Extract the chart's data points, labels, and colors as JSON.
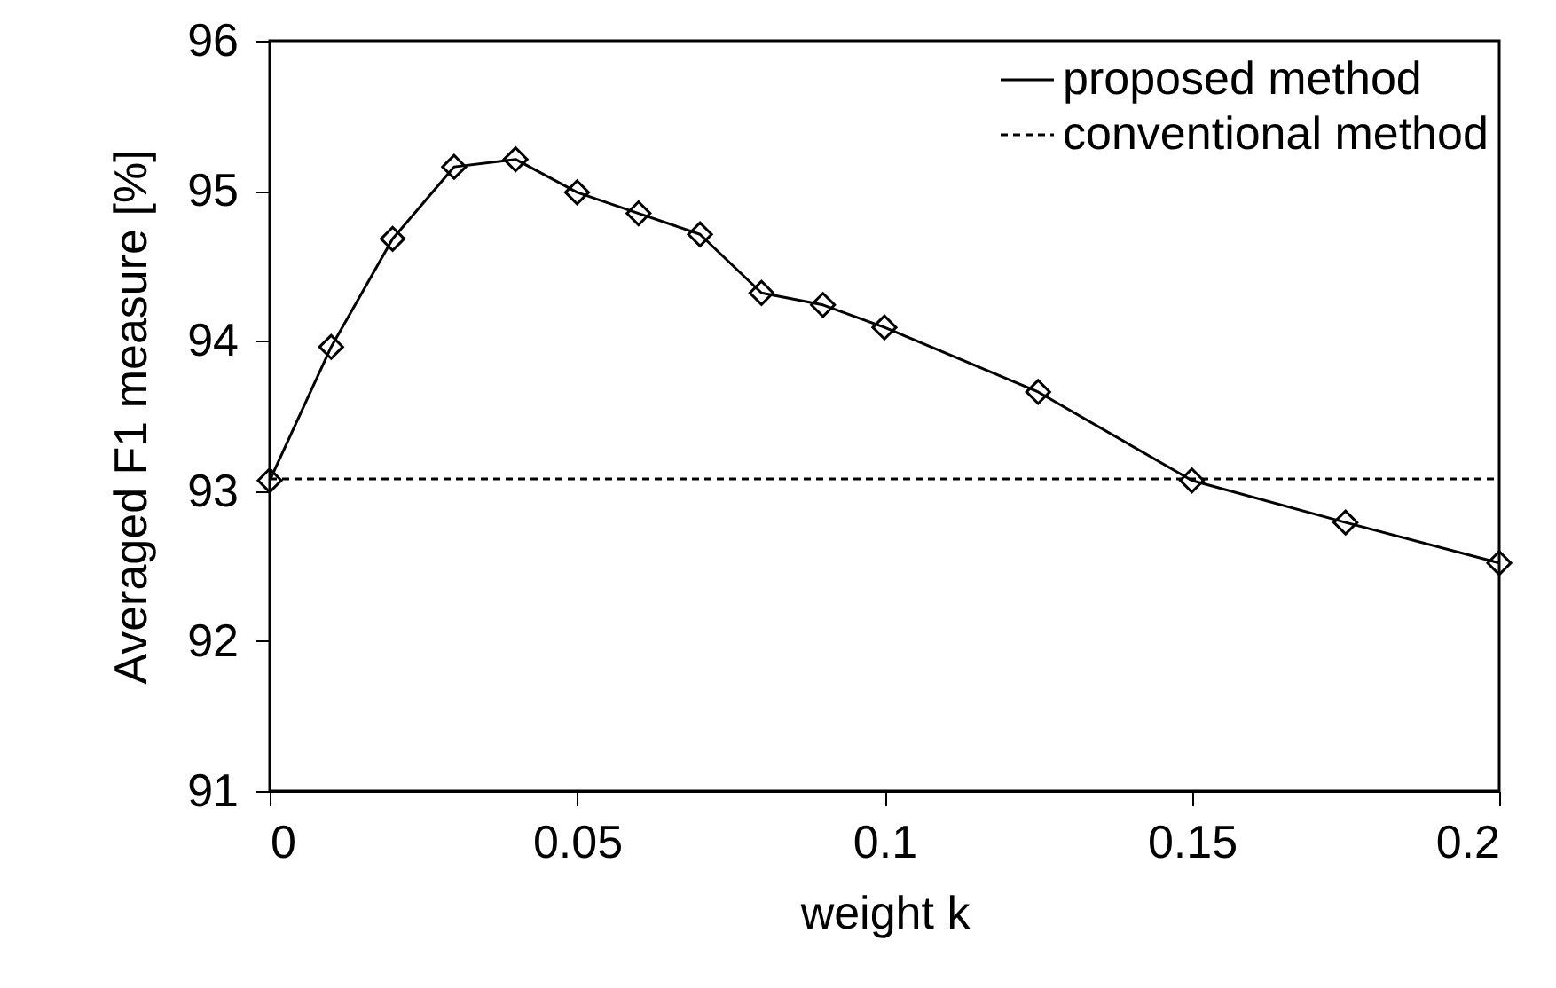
{
  "chart_data": {
    "type": "line",
    "xlabel": "weight k",
    "ylabel": "Averaged F1 measure [%]",
    "xlim": [
      0,
      0.2
    ],
    "xticks": [
      0,
      0.05,
      0.1,
      0.15,
      0.2
    ],
    "ylim": [
      91,
      96
    ],
    "yticks": [
      91,
      92,
      93,
      94,
      95,
      96
    ],
    "grid": false,
    "legend": "top right",
    "series": [
      {
        "name": "proposed method",
        "color": "#000000",
        "marker": "diamond",
        "line_style": "solid",
        "x": [
          0,
          0.01,
          0.02,
          0.03,
          0.04,
          0.05,
          0.06,
          0.07,
          0.08,
          0.09,
          0.1,
          0.125,
          0.15,
          0.175,
          0.2
        ],
        "values": [
          93.07,
          93.96,
          94.68,
          95.16,
          95.21,
          94.99,
          94.85,
          94.71,
          94.32,
          94.24,
          94.09,
          93.66,
          93.07,
          92.79,
          92.52
        ]
      },
      {
        "name": "conventional method",
        "color": "#000000",
        "marker": "none",
        "line_style": "dashed",
        "x": [
          0,
          0.2
        ],
        "values": [
          93.08,
          93.08
        ]
      }
    ]
  }
}
